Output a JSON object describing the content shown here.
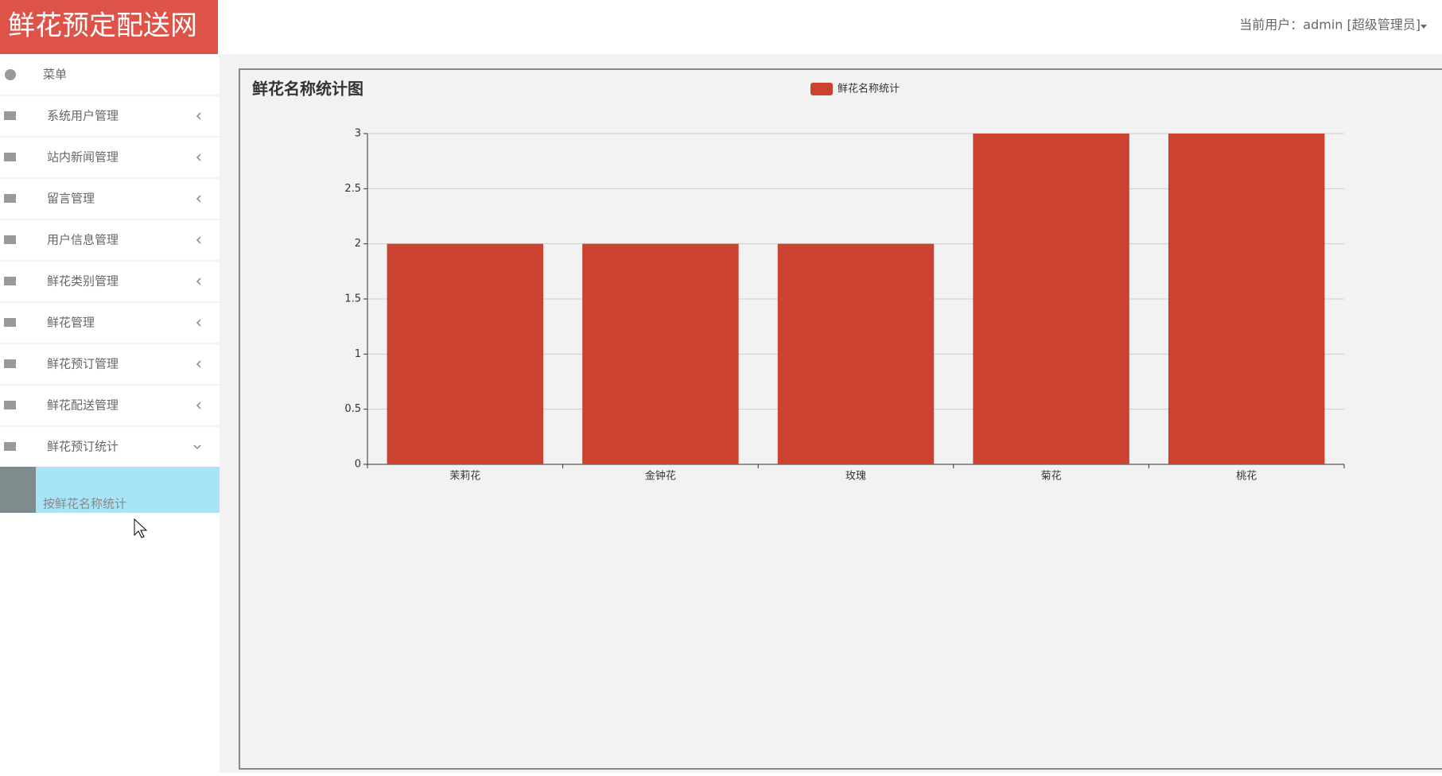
{
  "header": {
    "logo": "鲜花预定配送网",
    "current_user": "当前用户：admin [超级管理员]"
  },
  "sidebar": {
    "menu_label": "菜单",
    "items": [
      "系统用户管理",
      "站内新闻管理",
      "留言管理",
      "用户信息管理",
      "鲜花类别管理",
      "鲜花管理",
      "鲜花预订管理",
      "鲜花配送管理",
      "鲜花预订统计"
    ],
    "active_subitem": "按鲜花名称统计"
  },
  "chart_data": {
    "type": "bar",
    "title": "鲜花名称统计图",
    "categories": [
      "茉莉花",
      "金钟花",
      "玫瑰",
      "菊花",
      "桃花"
    ],
    "series": [
      {
        "name": "鲜花名称统计",
        "color": "#cc4230",
        "values": [
          2,
          2,
          2,
          3,
          3
        ]
      }
    ],
    "ylim": [
      0,
      3
    ],
    "yticks": [
      0,
      0.5,
      1,
      1.5,
      2,
      2.5,
      3
    ],
    "grid": true,
    "legend": "top"
  }
}
